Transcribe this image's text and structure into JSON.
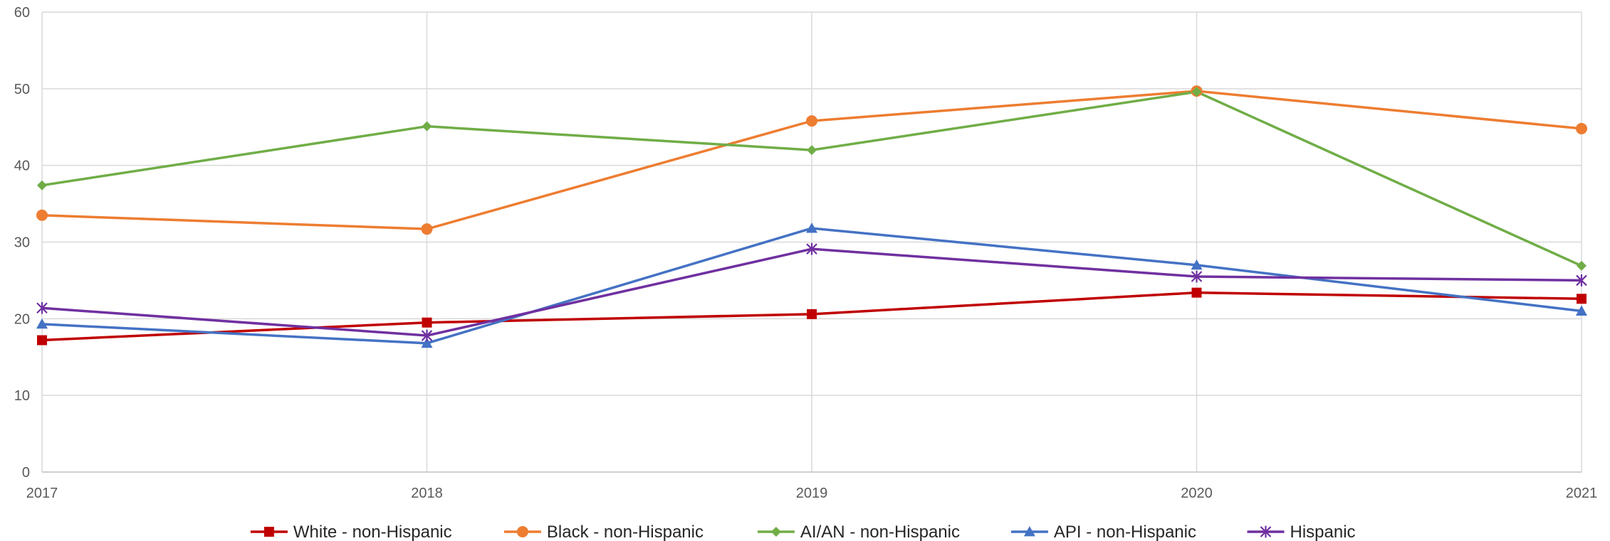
{
  "chart_data": {
    "type": "line",
    "title": "",
    "xlabel": "",
    "ylabel": "",
    "x": [
      "2017",
      "2018",
      "2019",
      "2020",
      "2021"
    ],
    "ylim": [
      0,
      60
    ],
    "yticks": [
      "0",
      "10",
      "20",
      "30",
      "40",
      "50",
      "60"
    ],
    "grid": true,
    "legend_position": "bottom",
    "series": [
      {
        "name": "White - non-Hispanic",
        "color": "#C00000",
        "marker": "square",
        "values": [
          17.2,
          19.5,
          20.6,
          23.4,
          22.6
        ]
      },
      {
        "name": "Black - non-Hispanic",
        "color": "#ED7D31",
        "marker": "circle",
        "values": [
          33.5,
          31.7,
          45.8,
          49.7,
          44.8
        ]
      },
      {
        "name": "AI/AN - non-Hispanic",
        "color": "#70AD47",
        "marker": "diamond",
        "values": [
          37.4,
          45.1,
          42.0,
          49.6,
          26.9
        ]
      },
      {
        "name": "API - non-Hispanic",
        "color": "#4472C4",
        "marker": "triangle",
        "values": [
          19.3,
          16.8,
          31.8,
          27.0,
          21.0
        ]
      },
      {
        "name": "Hispanic",
        "color": "#7030A0",
        "marker": "star",
        "values": [
          21.4,
          17.8,
          29.1,
          25.5,
          25.0
        ]
      }
    ]
  }
}
